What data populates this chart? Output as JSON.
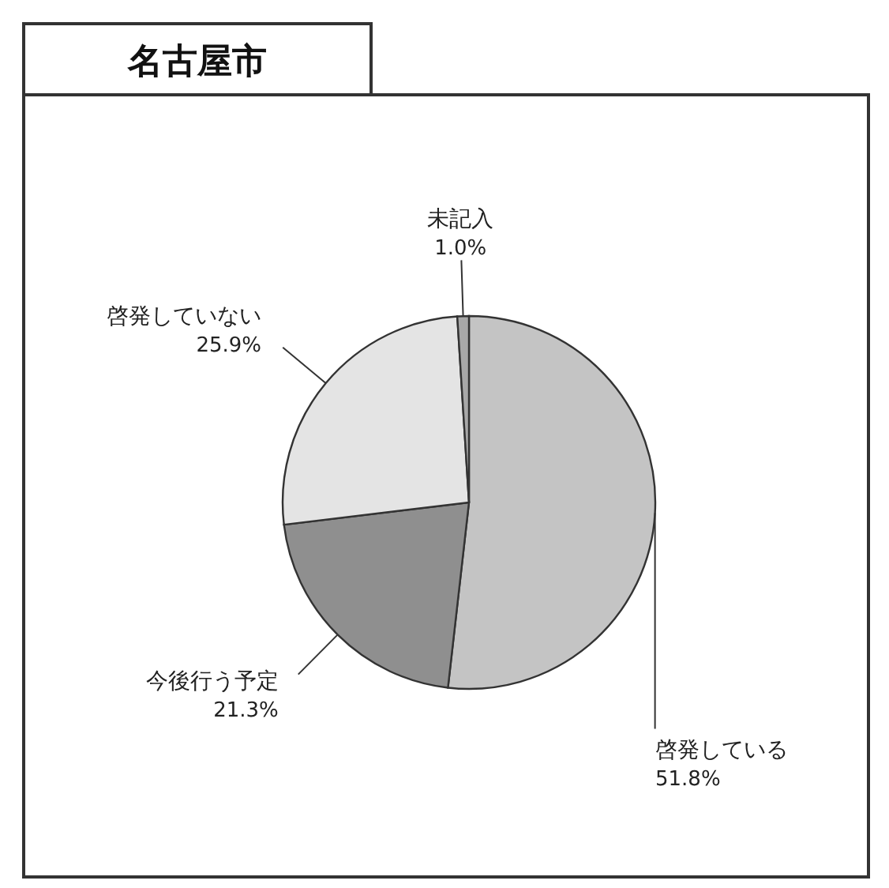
{
  "chart_data": {
    "type": "pie",
    "title": "名古屋市",
    "categories": [
      "啓発している",
      "今後行う予定",
      "啓発していない",
      "未記入"
    ],
    "values": [
      51.8,
      21.3,
      25.9,
      1.0
    ],
    "value_labels": [
      "51.8%",
      "21.3%",
      "25.9%",
      "1.0%"
    ],
    "colors": [
      "#c4c4c4",
      "#8f8f8f",
      "#e4e4e4",
      "#a8a8a8"
    ]
  }
}
